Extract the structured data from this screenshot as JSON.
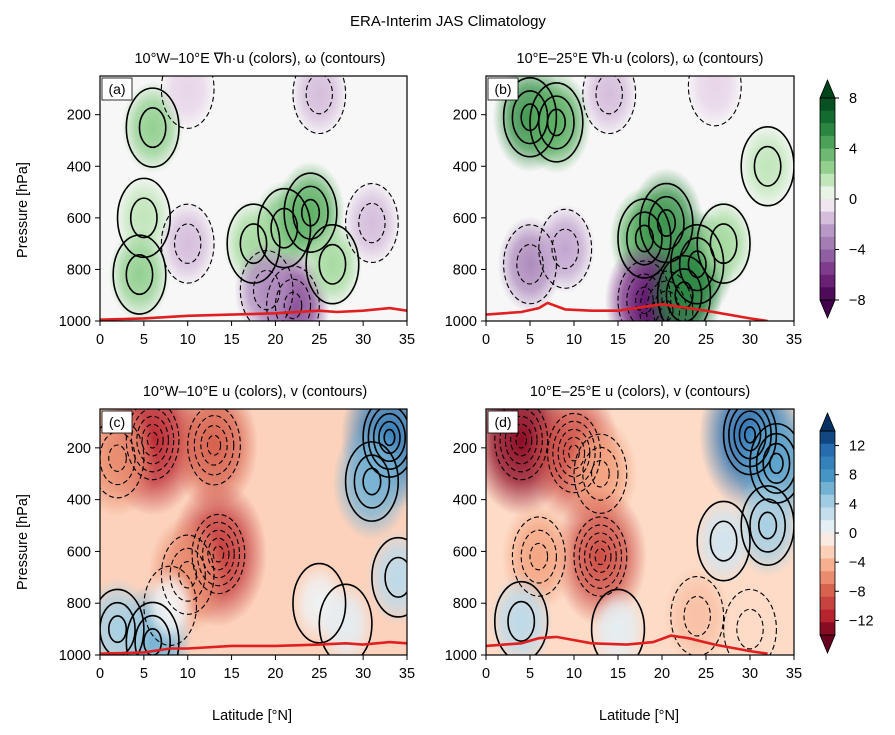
{
  "figure": {
    "suptitle": "ERA-Interim JAS Climatology",
    "colors": {
      "green": "#1b7a33",
      "purple": "#6a1a86",
      "blue": "#2b6fb0",
      "red": "#b5182b",
      "surface_line": "#e02020"
    }
  },
  "chart_data": [
    {
      "id": "a",
      "type": "heatmap",
      "panel_label": "(a)",
      "title": "10°W–10°E ∇h·u (colors), ω (contours)",
      "xlabel": "",
      "ylabel": "Pressure [hPa]",
      "xlim": [
        0,
        35
      ],
      "ylim": [
        1000,
        50
      ],
      "xticks": [
        0,
        5,
        10,
        15,
        20,
        25,
        30,
        35
      ],
      "yticks": [
        200,
        400,
        600,
        800,
        1000
      ],
      "colormap": "PRGn",
      "fill_features": [
        {
          "x": 6.0,
          "p": 250,
          "value": 2.5
        },
        {
          "x": 5.0,
          "p": 600,
          "value": 1.5
        },
        {
          "x": 4.5,
          "p": 820,
          "value": 2.5
        },
        {
          "x": 10.0,
          "p": 700,
          "value": -1.5
        },
        {
          "x": 21.0,
          "p": 640,
          "value": 3.0
        },
        {
          "x": 24.0,
          "p": 580,
          "value": 4.0
        },
        {
          "x": 17.5,
          "p": 700,
          "value": 2.0
        },
        {
          "x": 22.0,
          "p": 940,
          "value": -5.0
        },
        {
          "x": 19.0,
          "p": 880,
          "value": -3.0
        },
        {
          "x": 26.5,
          "p": 780,
          "value": 2.0
        },
        {
          "x": 31.0,
          "p": 620,
          "value": -1.5
        },
        {
          "x": 25.0,
          "p": 120,
          "value": -1.5
        },
        {
          "x": 10.0,
          "p": 100,
          "value": -1.0
        }
      ],
      "surface_line": {
        "x": [
          0,
          5,
          10,
          15,
          20,
          25,
          27,
          30,
          33,
          35
        ],
        "p": [
          995,
          990,
          980,
          975,
          970,
          960,
          965,
          960,
          950,
          960
        ]
      }
    },
    {
      "id": "b",
      "type": "heatmap",
      "panel_label": "(b)",
      "title": "10°E–25°E ∇h·u (colors), ω (contours)",
      "xlabel": "",
      "ylabel": "",
      "xlim": [
        0,
        35
      ],
      "ylim": [
        1000,
        50
      ],
      "xticks": [
        0,
        5,
        10,
        15,
        20,
        25,
        30,
        35
      ],
      "yticks": [
        200,
        400,
        600,
        800,
        1000
      ],
      "colormap": "PRGn",
      "fill_features": [
        {
          "x": 5.0,
          "p": 210,
          "value": 5.0
        },
        {
          "x": 8.0,
          "p": 230,
          "value": 4.0
        },
        {
          "x": 5.0,
          "p": 780,
          "value": -3.0
        },
        {
          "x": 9.0,
          "p": 720,
          "value": -2.0
        },
        {
          "x": 18.0,
          "p": 680,
          "value": 4.0
        },
        {
          "x": 20.5,
          "p": 620,
          "value": 5.0
        },
        {
          "x": 18.0,
          "p": 920,
          "value": -6.0
        },
        {
          "x": 20.5,
          "p": 960,
          "value": -7.0
        },
        {
          "x": 24.0,
          "p": 780,
          "value": 5.0
        },
        {
          "x": 22.5,
          "p": 900,
          "value": 5.5
        },
        {
          "x": 27.0,
          "p": 700,
          "value": 2.0
        },
        {
          "x": 32.0,
          "p": 400,
          "value": 1.5
        },
        {
          "x": 14.0,
          "p": 120,
          "value": -1.5
        },
        {
          "x": 26.0,
          "p": 90,
          "value": -1.0
        }
      ],
      "surface_line": {
        "x": [
          0,
          4,
          6,
          7,
          9,
          12,
          15,
          20,
          22,
          25,
          30,
          32
        ],
        "p": [
          975,
          965,
          950,
          930,
          955,
          960,
          960,
          935,
          945,
          960,
          990,
          1000
        ]
      }
    },
    {
      "id": "c",
      "type": "heatmap",
      "panel_label": "(c)",
      "title": "10°W–10°E u (colors), v (contours)",
      "xlabel": "Latitude [°N]",
      "ylabel": "Pressure [hPa]",
      "xlim": [
        0,
        35
      ],
      "ylim": [
        1000,
        50
      ],
      "xticks": [
        0,
        5,
        10,
        15,
        20,
        25,
        30,
        35
      ],
      "yticks": [
        200,
        400,
        600,
        800,
        1000
      ],
      "colormap": "RdBu",
      "background_value": -2.5,
      "fill_features": [
        {
          "x": 6.0,
          "p": 170,
          "value": -11.0
        },
        {
          "x": 13.0,
          "p": 190,
          "value": -8.0
        },
        {
          "x": 2.0,
          "p": 240,
          "value": -6.0
        },
        {
          "x": 13.5,
          "p": 610,
          "value": -10.0
        },
        {
          "x": 10.0,
          "p": 690,
          "value": -6.0
        },
        {
          "x": 33.0,
          "p": 160,
          "value": 10.0
        },
        {
          "x": 31.0,
          "p": 330,
          "value": 6.0
        },
        {
          "x": 34.0,
          "p": 700,
          "value": 3.0
        },
        {
          "x": 6.0,
          "p": 950,
          "value": 6.0
        },
        {
          "x": 2.0,
          "p": 900,
          "value": 4.0
        },
        {
          "x": 25.0,
          "p": 800,
          "value": 0.5
        },
        {
          "x": 28.0,
          "p": 880,
          "value": 1.0
        },
        {
          "x": 8.0,
          "p": 810,
          "value": 0.0
        }
      ],
      "surface_line": {
        "x": [
          0,
          5,
          8,
          10,
          15,
          20,
          25,
          28,
          30,
          33,
          35
        ],
        "p": [
          995,
          990,
          975,
          975,
          965,
          965,
          960,
          955,
          960,
          950,
          955
        ]
      }
    },
    {
      "id": "d",
      "type": "heatmap",
      "panel_label": "(d)",
      "title": "10°E–25°E u (colors), v (contours)",
      "xlabel": "Latitude [°N]",
      "ylabel": "",
      "xlim": [
        0,
        35
      ],
      "ylim": [
        1000,
        50
      ],
      "xticks": [
        0,
        5,
        10,
        15,
        20,
        25,
        30,
        35
      ],
      "yticks": [
        200,
        400,
        600,
        800,
        1000
      ],
      "colormap": "RdBu",
      "background_value": -2.0,
      "fill_features": [
        {
          "x": 4.0,
          "p": 170,
          "value": -13.0
        },
        {
          "x": 10.0,
          "p": 220,
          "value": -9.0
        },
        {
          "x": 13.0,
          "p": 300,
          "value": -5.0
        },
        {
          "x": 13.0,
          "p": 620,
          "value": -9.0
        },
        {
          "x": 6.0,
          "p": 620,
          "value": -5.0
        },
        {
          "x": 30.0,
          "p": 150,
          "value": 11.0
        },
        {
          "x": 33.0,
          "p": 260,
          "value": 7.0
        },
        {
          "x": 32.0,
          "p": 500,
          "value": 4.0
        },
        {
          "x": 27.0,
          "p": 560,
          "value": 2.0
        },
        {
          "x": 4.0,
          "p": 870,
          "value": 3.0
        },
        {
          "x": 15.0,
          "p": 900,
          "value": 1.0
        },
        {
          "x": 24.0,
          "p": 850,
          "value": -3.5
        },
        {
          "x": 30.0,
          "p": 900,
          "value": -2.0
        }
      ],
      "surface_line": {
        "x": [
          0,
          4,
          6,
          8,
          12,
          16,
          19,
          21,
          23,
          26,
          30,
          32
        ],
        "p": [
          965,
          955,
          935,
          930,
          955,
          960,
          950,
          925,
          935,
          960,
          985,
          995
        ]
      }
    }
  ],
  "colorbars": [
    {
      "panel": "ab",
      "cmap": "PRGn",
      "min": -8,
      "max": 8,
      "ticks": [
        "8",
        "4",
        "0",
        "−4",
        "−8"
      ],
      "tick_values": [
        8,
        4,
        0,
        -4,
        -8
      ]
    },
    {
      "panel": "cd",
      "cmap": "RdBu",
      "min": -14,
      "max": 14,
      "ticks": [
        "12",
        "8",
        "4",
        "0",
        "−4",
        "−8",
        "−12"
      ],
      "tick_values": [
        12,
        8,
        4,
        0,
        -4,
        -8,
        -12
      ]
    }
  ]
}
